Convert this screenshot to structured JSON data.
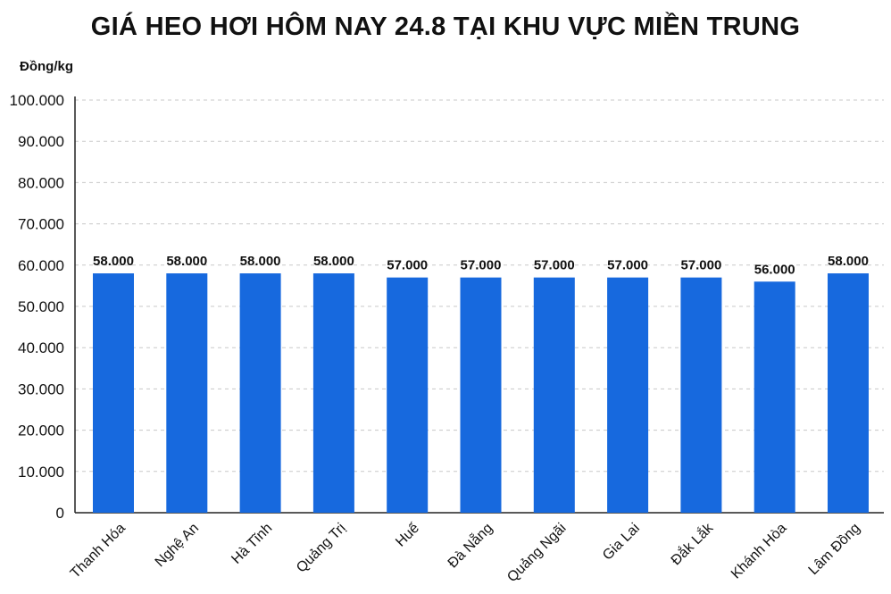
{
  "chart_data": {
    "type": "bar",
    "title": "GIÁ HEO HƠI HÔM NAY 24.8 TẠI KHU VỰC MIỀN TRUNG",
    "ylabel": "Đồng/kg",
    "xlabel": "",
    "categories": [
      "Thanh Hóa",
      "Nghệ An",
      "Hà Tĩnh",
      "Quảng Trị",
      "Huế",
      "Đà Nẵng",
      "Quảng Ngãi",
      "Gia Lai",
      "Đắk Lắk",
      "Khánh Hòa",
      "Lâm Đồng"
    ],
    "values": [
      58000,
      58000,
      58000,
      58000,
      57000,
      57000,
      57000,
      57000,
      57000,
      56000,
      58000
    ],
    "data_labels": [
      "58.000",
      "58.000",
      "58.000",
      "58.000",
      "57.000",
      "57.000",
      "57.000",
      "57.000",
      "57.000",
      "56.000",
      "58.000"
    ],
    "ylim": [
      0,
      100000
    ],
    "yticks": [
      0,
      10000,
      20000,
      30000,
      40000,
      50000,
      60000,
      70000,
      80000,
      90000,
      100000
    ],
    "ytick_labels": [
      "0",
      "10.000",
      "20.000",
      "30.000",
      "40.000",
      "50.000",
      "60.000",
      "70.000",
      "80.000",
      "90.000",
      "100.000"
    ],
    "grid": true,
    "bar_color": "#1769de"
  }
}
